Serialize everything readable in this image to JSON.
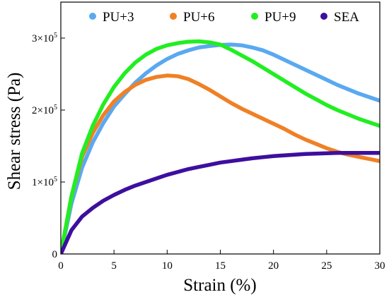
{
  "chart_data": {
    "type": "line",
    "title": "",
    "xlabel": "Strain (%)",
    "ylabel": "Shear stress (Pa)",
    "xlim": [
      0,
      30
    ],
    "ylim": [
      0,
      350000
    ],
    "x_ticks": [
      {
        "value": 0,
        "label": "0"
      },
      {
        "value": 5,
        "label": "5"
      },
      {
        "value": 10,
        "label": "10"
      },
      {
        "value": 15,
        "label": "15"
      },
      {
        "value": 20,
        "label": "20"
      },
      {
        "value": 25,
        "label": "25"
      },
      {
        "value": 30,
        "label": "30"
      }
    ],
    "y_ticks": [
      {
        "value": 0,
        "mant": "0",
        "exp": ""
      },
      {
        "value": 100000,
        "mant": "1×10",
        "exp": "5"
      },
      {
        "value": 200000,
        "mant": "2×10",
        "exp": "5"
      },
      {
        "value": 300000,
        "mant": "3×10",
        "exp": "5"
      }
    ],
    "grid": false,
    "legend_position": "top",
    "series": [
      {
        "name": "PU+3",
        "color": "#5aa9f0",
        "x": [
          0,
          1,
          2,
          3,
          4,
          5,
          6,
          7,
          8,
          9,
          10,
          11,
          12,
          13,
          14,
          15,
          16,
          17,
          18,
          19,
          20,
          21,
          22,
          23,
          24,
          25,
          26,
          27,
          28,
          29,
          30
        ],
        "y": [
          0,
          70000,
          120000,
          155000,
          182000,
          205000,
          222000,
          238000,
          251000,
          262000,
          271000,
          278000,
          283000,
          287000,
          289000,
          290500,
          291000,
          290000,
          287000,
          283000,
          277000,
          270000,
          263000,
          256000,
          249000,
          242000,
          235000,
          229000,
          223000,
          218000,
          213000
        ]
      },
      {
        "name": "PU+6",
        "color": "#f08025",
        "x": [
          0,
          1,
          2,
          3,
          4,
          5,
          6,
          7,
          8,
          9,
          10,
          11,
          12,
          13,
          14,
          15,
          16,
          17,
          18,
          19,
          20,
          21,
          22,
          23,
          24,
          25,
          26,
          27,
          28,
          29,
          30
        ],
        "y": [
          0,
          80000,
          135000,
          168000,
          193000,
          212000,
          225000,
          235000,
          242000,
          246000,
          248000,
          247000,
          243000,
          236000,
          228000,
          219000,
          210000,
          202000,
          195000,
          188000,
          181000,
          174000,
          166000,
          159000,
          153000,
          147000,
          142000,
          138000,
          135000,
          132000,
          129000
        ]
      },
      {
        "name": "PU+9",
        "color": "#21ee21",
        "x": [
          0,
          1,
          2,
          3,
          4,
          5,
          6,
          7,
          8,
          9,
          10,
          11,
          12,
          13,
          14,
          15,
          16,
          17,
          18,
          19,
          20,
          21,
          22,
          23,
          24,
          25,
          26,
          27,
          28,
          29,
          30
        ],
        "y": [
          0,
          80000,
          140000,
          178000,
          208000,
          232000,
          251000,
          266000,
          277000,
          285000,
          290000,
          293000,
          295000,
          295500,
          294000,
          291000,
          284000,
          276000,
          268000,
          259000,
          250000,
          241000,
          232000,
          223000,
          215000,
          207000,
          200000,
          194000,
          188000,
          183000,
          178000
        ]
      },
      {
        "name": "SEA",
        "color": "#3d0f9e",
        "x": [
          0,
          1,
          2,
          3,
          4,
          5,
          6,
          7,
          8,
          9,
          10,
          11,
          12,
          13,
          14,
          15,
          16,
          17,
          18,
          19,
          20,
          21,
          22,
          23,
          24,
          25,
          26,
          27,
          28,
          29,
          30
        ],
        "y": [
          0,
          33000,
          52000,
          64000,
          74000,
          82000,
          89000,
          95000,
          100000,
          105000,
          110000,
          114000,
          118000,
          121000,
          124000,
          127000,
          129000,
          131000,
          133000,
          134500,
          136000,
          137000,
          138000,
          139000,
          139500,
          140000,
          140500,
          140500,
          140500,
          140500,
          140500
        ]
      }
    ]
  }
}
